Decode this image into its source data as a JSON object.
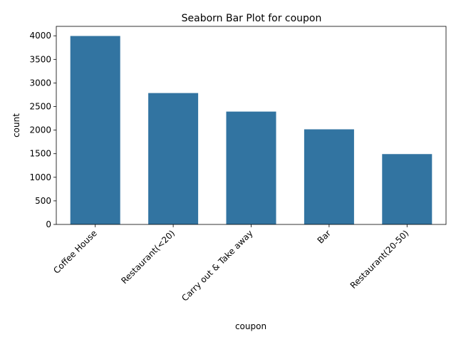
{
  "chart_data": {
    "type": "bar",
    "title": "Seaborn Bar Plot for coupon",
    "xlabel": "coupon",
    "ylabel": "count",
    "categories": [
      "Coffee House",
      "Restaurant(<20)",
      "Carry out & Take away",
      "Bar",
      "Restaurant(20-50)"
    ],
    "values": [
      3996,
      2786,
      2393,
      2017,
      1492
    ],
    "ylim": [
      0,
      4200
    ],
    "yticks": [
      0,
      500,
      1000,
      1500,
      2000,
      2500,
      3000,
      3500,
      4000
    ],
    "bar_color": "#3274a1",
    "grid": false
  }
}
